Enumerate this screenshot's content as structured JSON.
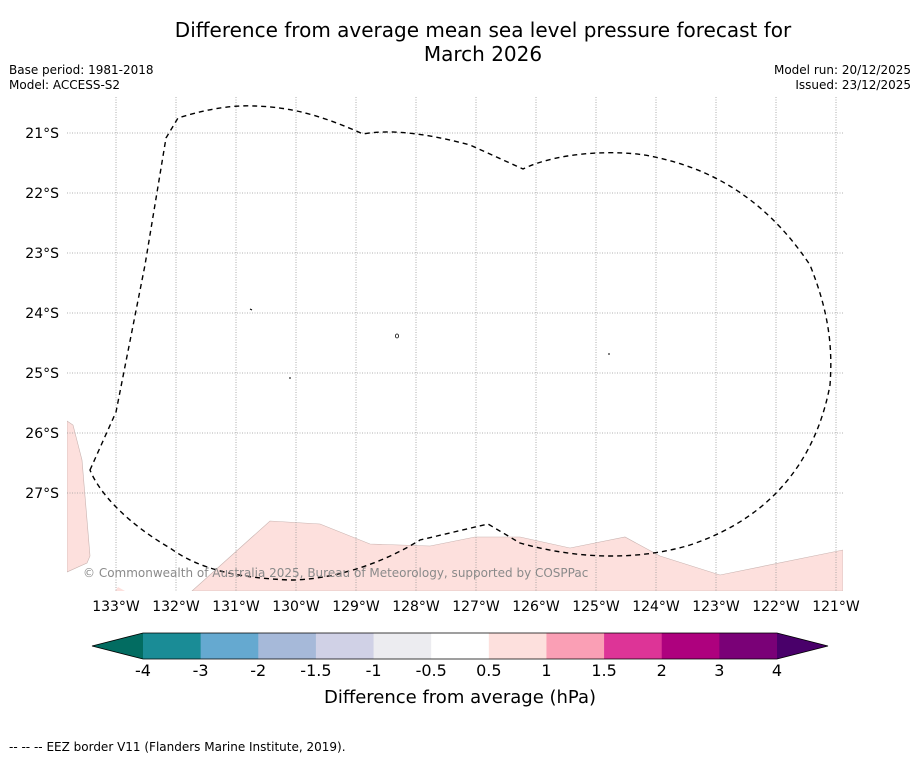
{
  "header": {
    "title_line1": "Difference from average mean sea level pressure forecast for",
    "title_line2": "March 2026",
    "base_period": "Base period: 1981-2018",
    "model": "Model: ACCESS-S2",
    "model_run": "Model run: 20/12/2025",
    "issued": "Issued: 23/12/2025"
  },
  "map": {
    "lat_labels": [
      "21°S",
      "22°S",
      "23°S",
      "24°S",
      "25°S",
      "26°S",
      "27°S"
    ],
    "lon_labels": [
      "133°W",
      "132°W",
      "131°W",
      "130°W",
      "129°W",
      "128°W",
      "127°W",
      "126°W",
      "125°W",
      "124°W",
      "123°W",
      "122°W",
      "121°W"
    ],
    "copyright": "© Commonwealth of Australia 2025, Bureau of Meteorology, supported by COSPPac",
    "anomaly_fill_color": "#fde0dd"
  },
  "colorbar": {
    "title": "Difference from average (hPa)",
    "tick_labels": [
      "-4",
      "-3",
      "-2",
      "-1.5",
      "-1",
      "-0.5",
      "0.5",
      "1",
      "1.5",
      "2",
      "3",
      "4"
    ],
    "colors": [
      "#1a8c96",
      "#65a9d0",
      "#a6b9d9",
      "#d0d1e6",
      "#ececf0",
      "#ffffff",
      "#fde0dd",
      "#fa9fb5",
      "#dd3497",
      "#ae017e",
      "#7a0177"
    ],
    "under_color": "#026c61",
    "over_color": "#49006a"
  },
  "footer": {
    "legend_symbol": "--  --  --",
    "legend_text": "EEZ border V11 (Flanders Marine Institute, 2019)."
  }
}
